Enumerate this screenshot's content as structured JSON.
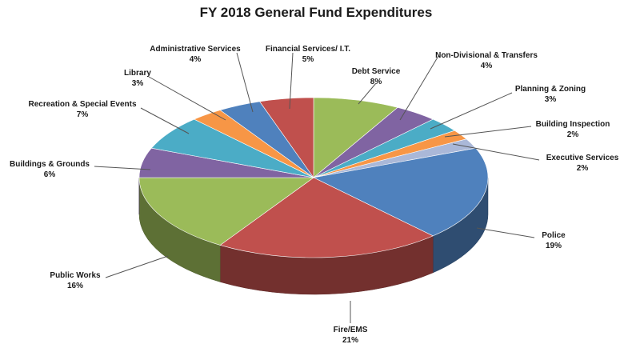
{
  "chart_data": {
    "type": "pie",
    "title": "FY 2018 General Fund Expenditures",
    "slices": [
      {
        "label": "Debt Service",
        "value": 8,
        "display": "8%",
        "color": "#9bbb59"
      },
      {
        "label": "Non-Divisional & Transfers",
        "value": 4,
        "display": "4%",
        "color": "#8064a2"
      },
      {
        "label": "Planning & Zoning",
        "value": 3,
        "display": "3%",
        "color": "#4bacc6"
      },
      {
        "label": "Building Inspection",
        "value": 2,
        "display": "2%",
        "color": "#f79646"
      },
      {
        "label": "Executive Services",
        "value": 2,
        "display": "2%",
        "color": "#aab8d8"
      },
      {
        "label": "Police",
        "value": 19,
        "display": "19%",
        "color": "#4f81bd"
      },
      {
        "label": "Fire/EMS",
        "value": 21,
        "display": "21%",
        "color": "#c0504d"
      },
      {
        "label": "Public Works",
        "value": 16,
        "display": "16%",
        "color": "#9bbb59"
      },
      {
        "label": "Buildings & Grounds",
        "value": 6,
        "display": "6%",
        "color": "#8064a2"
      },
      {
        "label": "Recreation & Special Events",
        "value": 7,
        "display": "7%",
        "color": "#4bacc6"
      },
      {
        "label": "Library",
        "value": 3,
        "display": "3%",
        "color": "#f79646"
      },
      {
        "label": "Administrative Services",
        "value": 4,
        "display": "4%",
        "color": "#4f81bd"
      },
      {
        "label": "Financial Services/ I.T.",
        "value": 5,
        "display": "5%",
        "color": "#c0504d"
      }
    ],
    "style": "3d",
    "legend": "none"
  }
}
